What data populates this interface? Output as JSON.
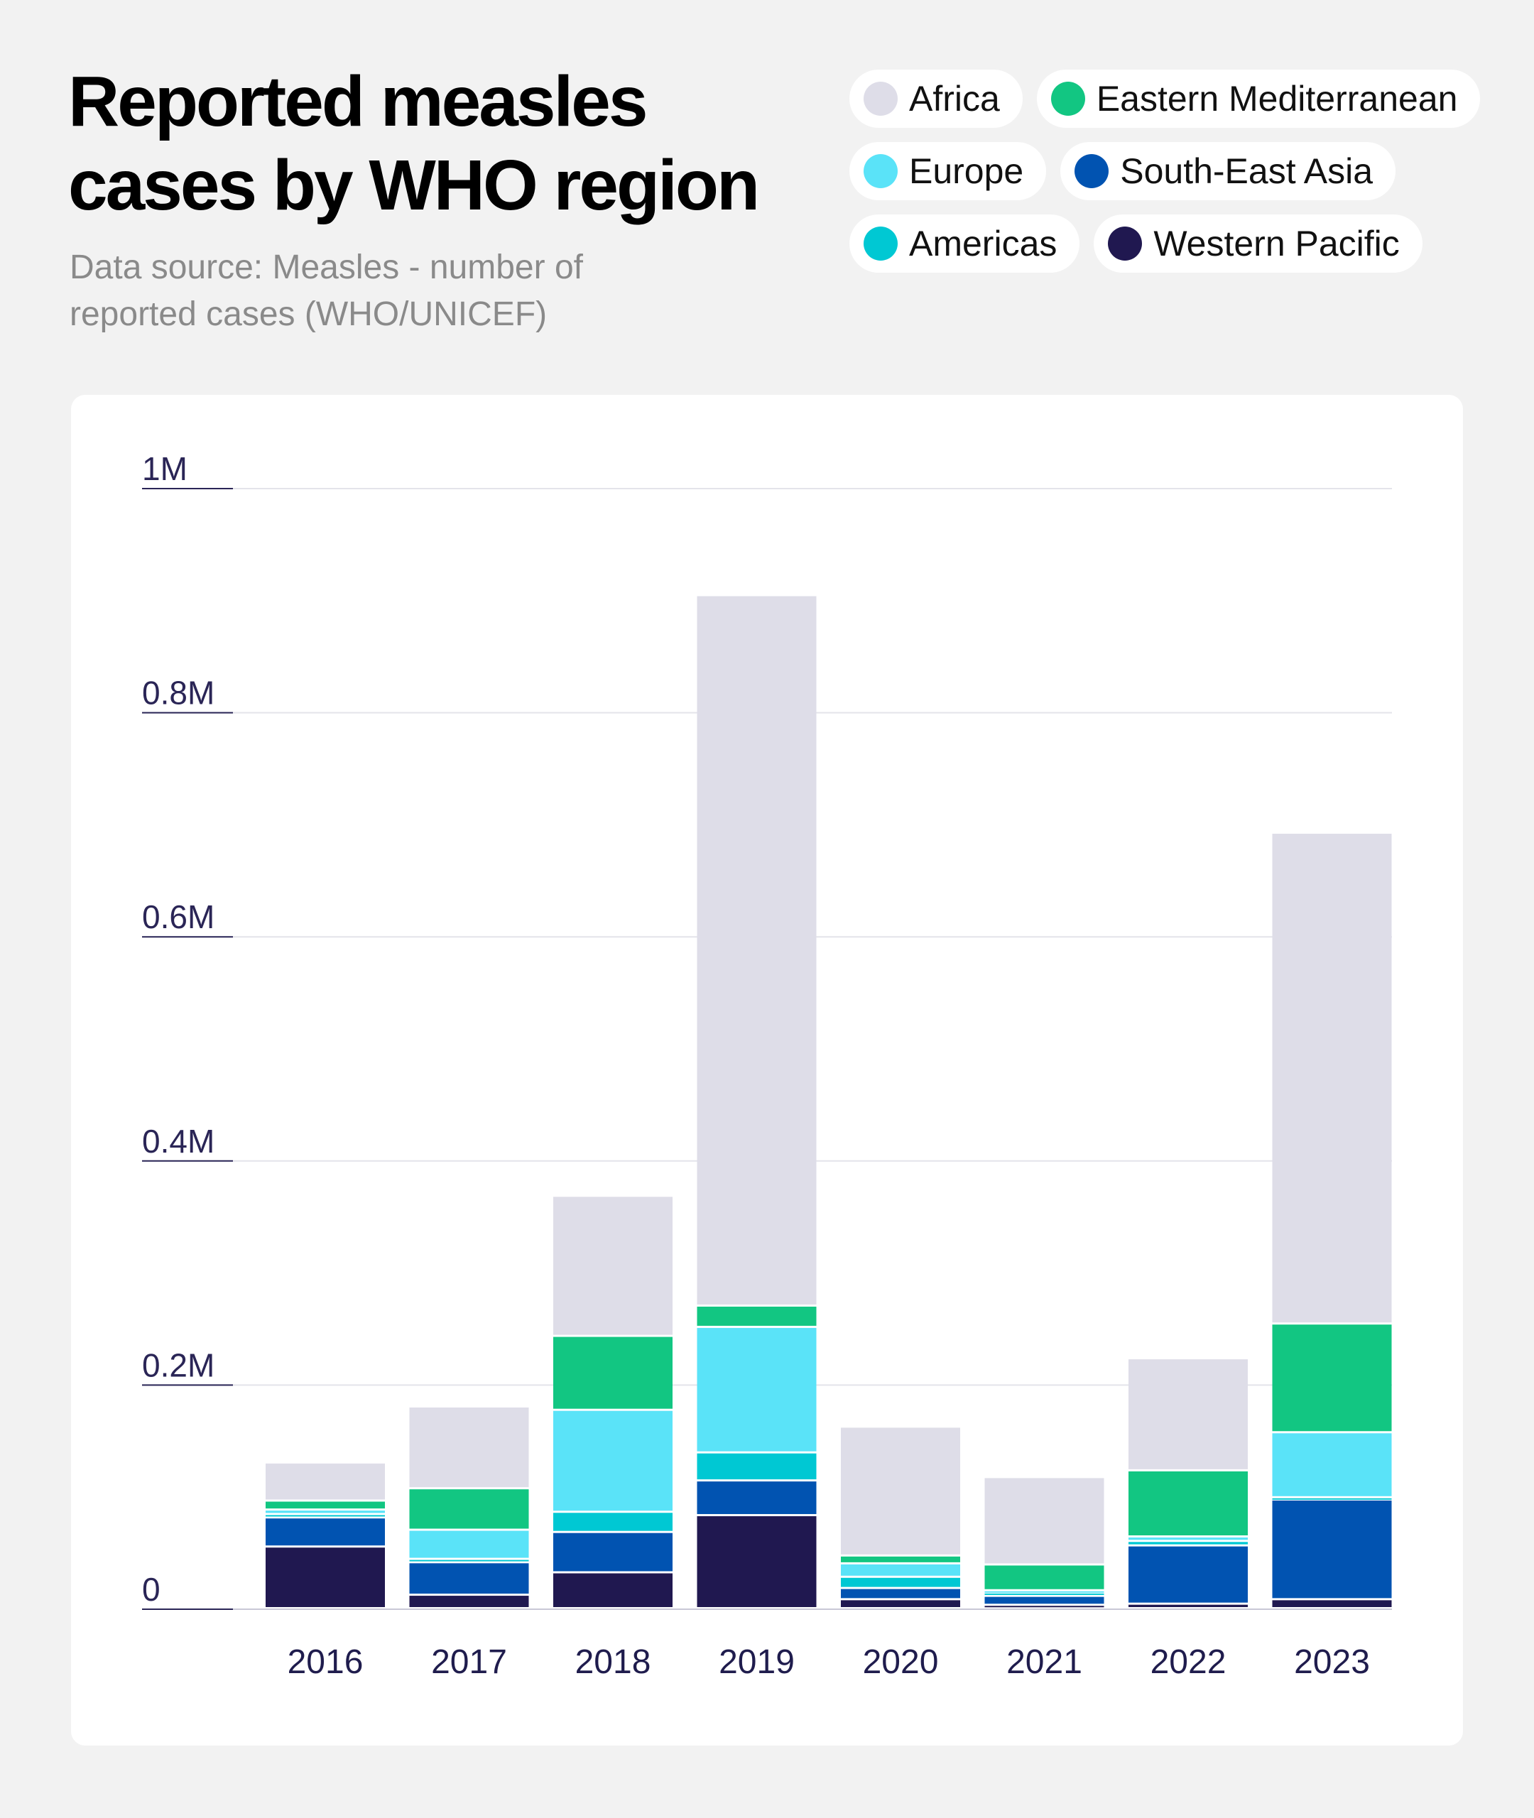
{
  "title": "Reported measles cases by WHO region",
  "subtitle": "Data source: Measles - number of reported cases (WHO/UNICEF)",
  "colors": {
    "Africa": "#dedde8",
    "Eastern Mediterranean": "#12c682",
    "Europe": "#5ae3f8",
    "South-East Asia": "#0153b1",
    "Americas": "#00c8d3",
    "Western Pacific": "#201850"
  },
  "legend": [
    {
      "name": "Africa",
      "color": "#dedde8"
    },
    {
      "name": "Eastern Mediterranean",
      "color": "#12c682"
    },
    {
      "name": "Europe",
      "color": "#5ae3f8"
    },
    {
      "name": "South-East Asia",
      "color": "#0153b1"
    },
    {
      "name": "Americas",
      "color": "#00c8d3"
    },
    {
      "name": "Western Pacific",
      "color": "#201850"
    }
  ],
  "chart_data": {
    "type": "bar",
    "stacked": true,
    "categories": [
      "2016",
      "2017",
      "2018",
      "2019",
      "2020",
      "2021",
      "2022",
      "2023"
    ],
    "series": [
      {
        "name": "Western Pacific",
        "values": [
          55000,
          12000,
          32000,
          83000,
          8000,
          3000,
          4000,
          8000
        ]
      },
      {
        "name": "South-East Asia",
        "values": [
          26000,
          29000,
          36000,
          31000,
          10000,
          8000,
          52000,
          89000
        ]
      },
      {
        "name": "Americas",
        "values": [
          3000,
          3000,
          18000,
          25000,
          10000,
          3000,
          4000,
          2000
        ]
      },
      {
        "name": "Europe",
        "values": [
          4000,
          26000,
          91000,
          112000,
          12000,
          2000,
          4000,
          58000
        ]
      },
      {
        "name": "Eastern Mediterranean",
        "values": [
          8000,
          37000,
          66000,
          19000,
          7000,
          23000,
          59000,
          97000
        ]
      },
      {
        "name": "Africa",
        "values": [
          34000,
          73000,
          125000,
          634000,
          115000,
          78000,
          100000,
          438000
        ]
      }
    ],
    "ylim": [
      0,
      1000000
    ],
    "yticks": [
      {
        "value": 0,
        "label": "0"
      },
      {
        "value": 200000,
        "label": "0.2M"
      },
      {
        "value": 400000,
        "label": "0.4M"
      },
      {
        "value": 600000,
        "label": "0.6M"
      },
      {
        "value": 800000,
        "label": "0.8M"
      },
      {
        "value": 1000000,
        "label": "1M"
      }
    ],
    "grid": true
  }
}
